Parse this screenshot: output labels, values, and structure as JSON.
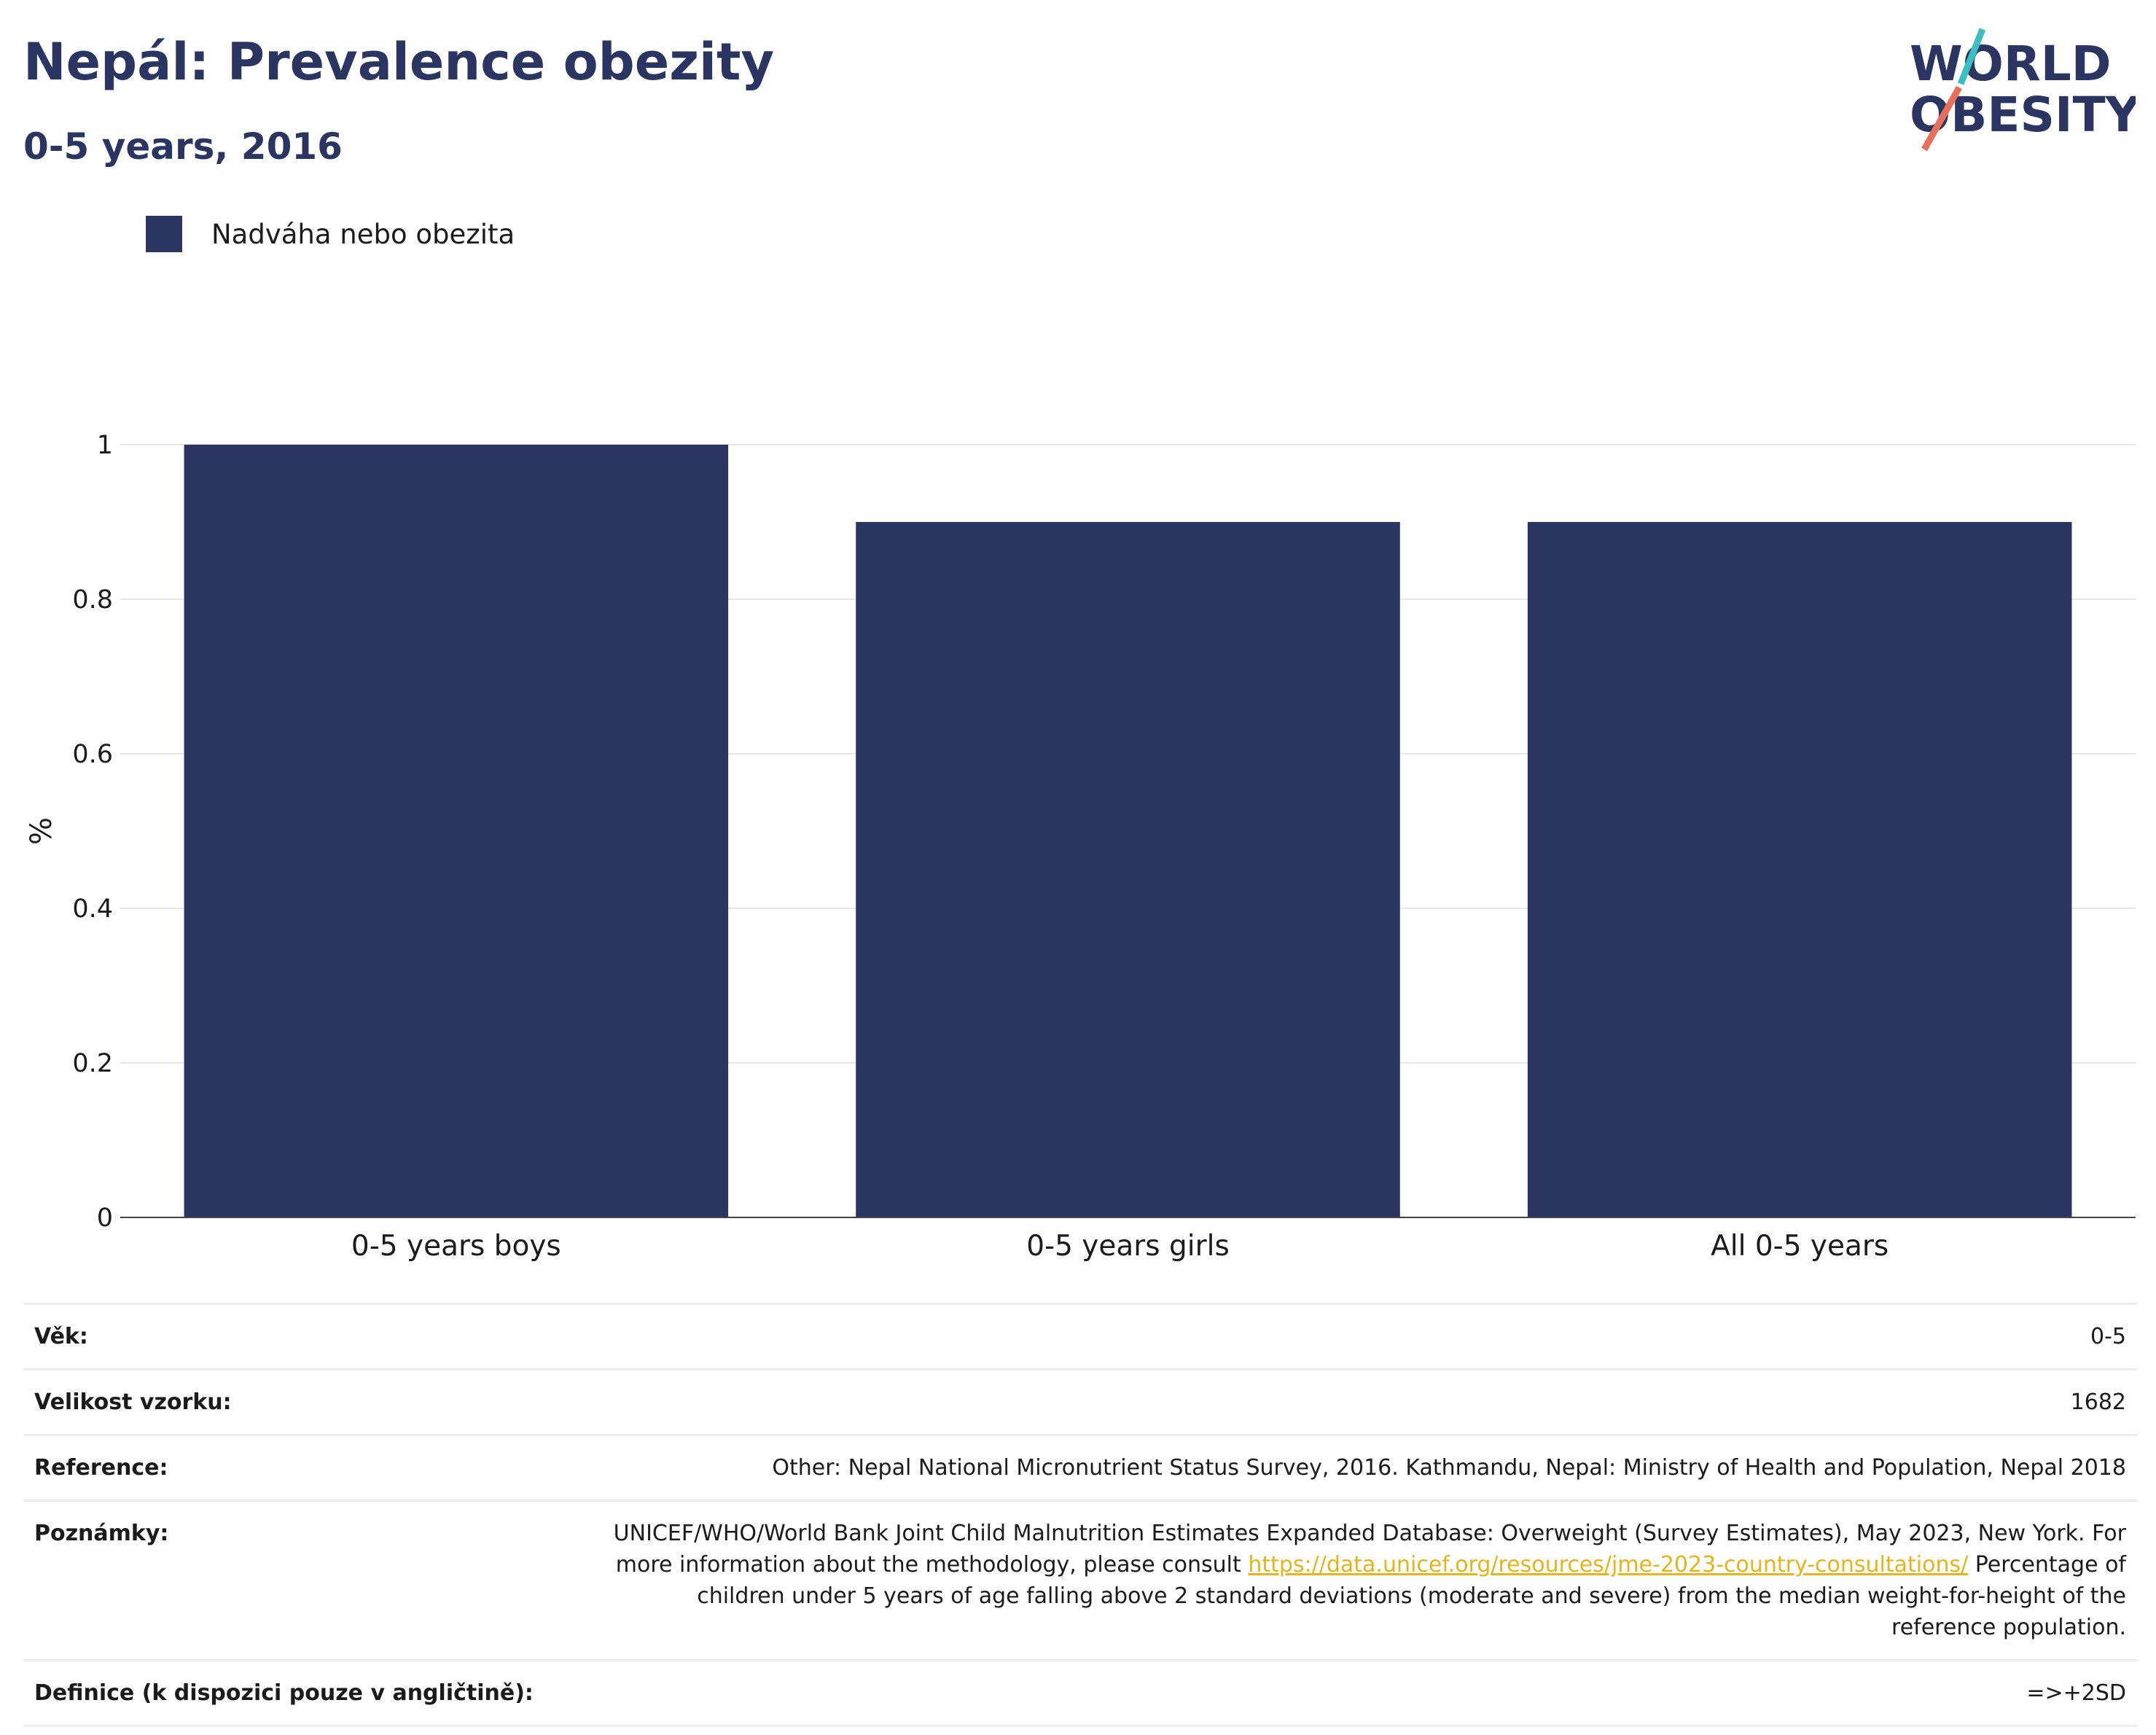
{
  "header": {
    "title": "Nepál: Prevalence obezity",
    "subtitle": "0-5 years, 2016",
    "logo_line1": "WORLD",
    "logo_line2": "OBESITY"
  },
  "legend": {
    "label": "Nadváha nebo obezita"
  },
  "colors": {
    "bar": "#2b3562",
    "brand": "#2b3562",
    "logo_teal": "#3bbfc1",
    "logo_coral": "#e8705a",
    "link": "#e7b41a"
  },
  "chart_data": {
    "type": "bar",
    "categories": [
      "0-5 years boys",
      "0-5 years girls",
      "All 0-5 years"
    ],
    "series": [
      {
        "name": "Nadváha nebo obezita",
        "values": [
          1.0,
          0.9,
          0.9
        ]
      }
    ],
    "title": "Nepál: Prevalence obezity",
    "subtitle": "0-5 years, 2016",
    "xlabel": "",
    "ylabel": "%",
    "ylim": [
      0,
      1
    ],
    "yticks": [
      0,
      0.2,
      0.4,
      0.6,
      0.8,
      1
    ],
    "ytick_labels": [
      "0",
      "0.2",
      "0.4",
      "0.6",
      "0.8",
      "1"
    ],
    "grid": true,
    "legend_position": "top-left"
  },
  "info": {
    "age_label": "Věk:",
    "age_value": "0-5",
    "sample_label": "Velikost vzorku:",
    "sample_value": "1682",
    "reference_label": "Reference:",
    "reference_value": "Other: Nepal National Micronutrient Status Survey, 2016. Kathmandu, Nepal: Ministry of Health and Population, Nepal 2018",
    "notes_label": "Poznámky:",
    "notes_text_1": "UNICEF/WHO/World Bank Joint Child Malnutrition Estimates Expanded Database: Overweight (Survey Estimates), May 2023, New York. For more information about the methodology, please consult ",
    "notes_link": "https://data.unicef.org/resources/jme-2023-country-consultations/",
    "notes_text_2": "Percentage of children under 5 years of age falling above 2 standard deviations (moderate and severe) from the median weight-for-height of the reference population.",
    "definition_label": "Definice (k dispozici pouze v angličtině):",
    "definition_value": "=>+2SD"
  }
}
